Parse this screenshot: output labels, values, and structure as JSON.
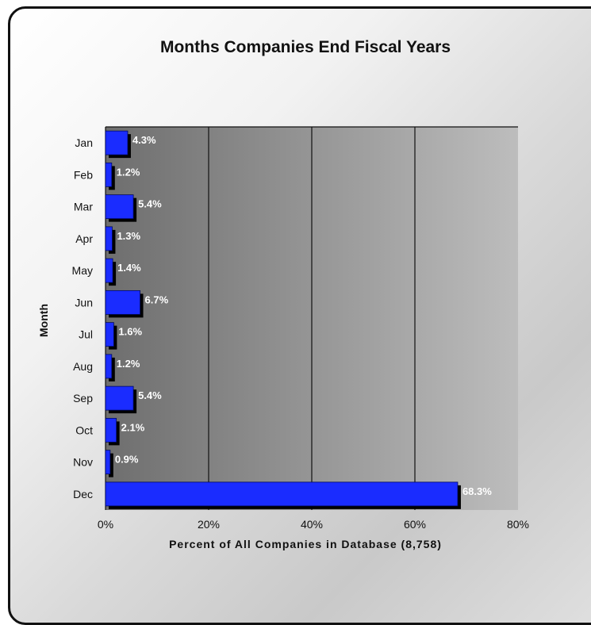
{
  "chart_data": {
    "type": "bar",
    "orientation": "horizontal",
    "title": "Months Companies End Fiscal Years",
    "xlabel": "Percent of All Companies in Database (8,758)",
    "ylabel": "Month",
    "categories": [
      "Jan",
      "Feb",
      "Mar",
      "Apr",
      "May",
      "Jun",
      "Jul",
      "Aug",
      "Sep",
      "Oct",
      "Nov",
      "Dec"
    ],
    "values": [
      4.3,
      1.2,
      5.4,
      1.3,
      1.4,
      6.7,
      1.6,
      1.2,
      5.4,
      2.1,
      0.9,
      68.3
    ],
    "data_labels": [
      "4.3%",
      "1.2%",
      "5.4%",
      "1.3%",
      "1.4%",
      "6.7%",
      "1.6%",
      "1.2%",
      "5.4%",
      "2.1%",
      "0.9%",
      "68.3%"
    ],
    "xlim": [
      0,
      80
    ],
    "xticks": [
      0,
      20,
      40,
      60,
      80
    ],
    "xtick_labels": [
      "0%",
      "20%",
      "40%",
      "60%",
      "80%"
    ],
    "grid": true,
    "legend": "none",
    "colors": {
      "bar": "#1a2cff",
      "bar_shadow": "#000000",
      "label": "#ffffff"
    }
  }
}
